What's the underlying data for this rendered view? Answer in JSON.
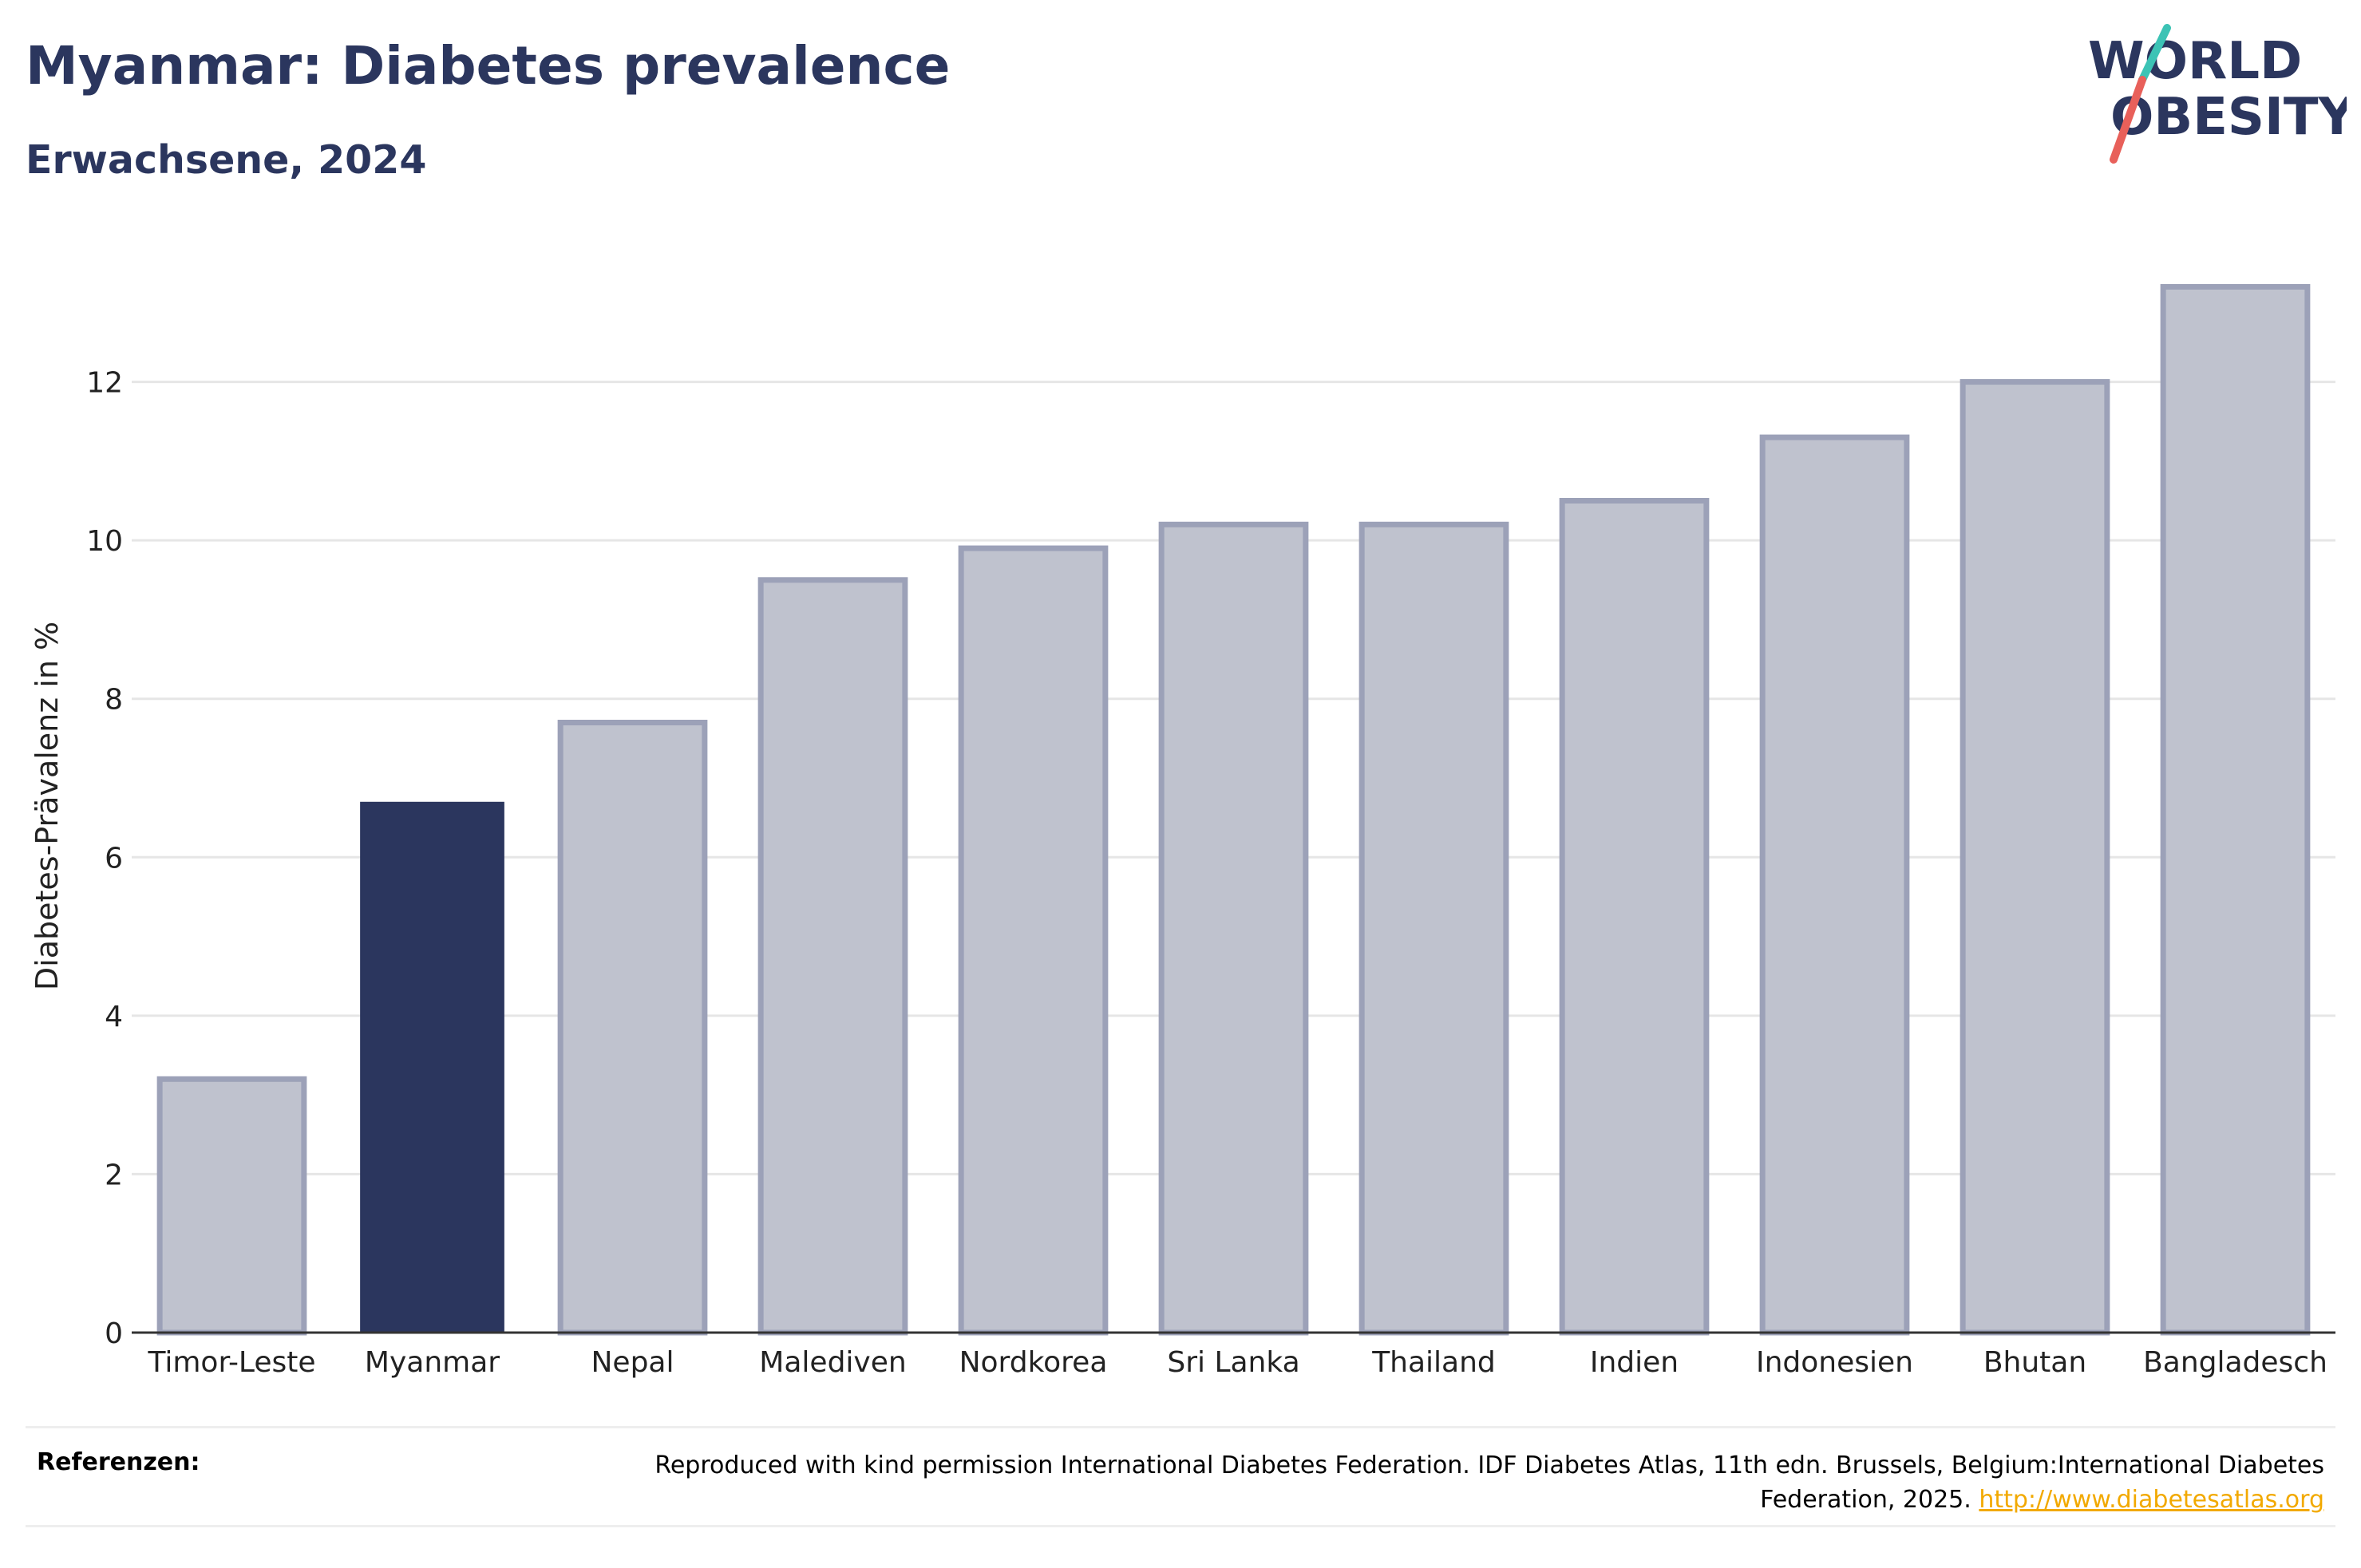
{
  "header": {
    "title": "Myanmar: Diabetes prevalence",
    "subtitle": "Erwachsene, 2024"
  },
  "logo": {
    "line1": "WORLD",
    "line2": "OBESITY",
    "slash_colors": [
      "#3cc3b5",
      "#e8605a"
    ]
  },
  "chart_data": {
    "type": "bar",
    "categories": [
      "Timor-Leste",
      "Myanmar",
      "Nepal",
      "Malediven",
      "Nordkorea",
      "Sri Lanka",
      "Thailand",
      "Indien",
      "Indonesien",
      "Bhutan",
      "Bangladesch"
    ],
    "values": [
      3.2,
      6.7,
      7.7,
      9.5,
      9.9,
      10.2,
      10.2,
      10.5,
      11.3,
      12.0,
      13.2
    ],
    "highlight": "Myanmar",
    "title": "Myanmar: Diabetes prevalence",
    "subtitle": "Erwachsene, 2024",
    "xlabel": "",
    "ylabel": "Diabetes-Prävalenz in %",
    "ylim": [
      0,
      14
    ],
    "yticks": [
      0,
      2,
      4,
      6,
      8,
      10,
      12
    ],
    "grid": true,
    "colors": {
      "highlight": "#2b365e",
      "other_fill": "#bfc2ce",
      "other_stroke": "#9ca1b8",
      "grid": "#e6e6e6",
      "axis": "#333333",
      "text": "#222222"
    }
  },
  "references": {
    "label": "Referenzen:",
    "text": "Reproduced with kind permission International Diabetes Federation. IDF Diabetes Atlas, 11th edn. Brussels, Belgium:International Diabetes Federation, 2025.",
    "link": "http://www.diabetesatlas.org"
  }
}
